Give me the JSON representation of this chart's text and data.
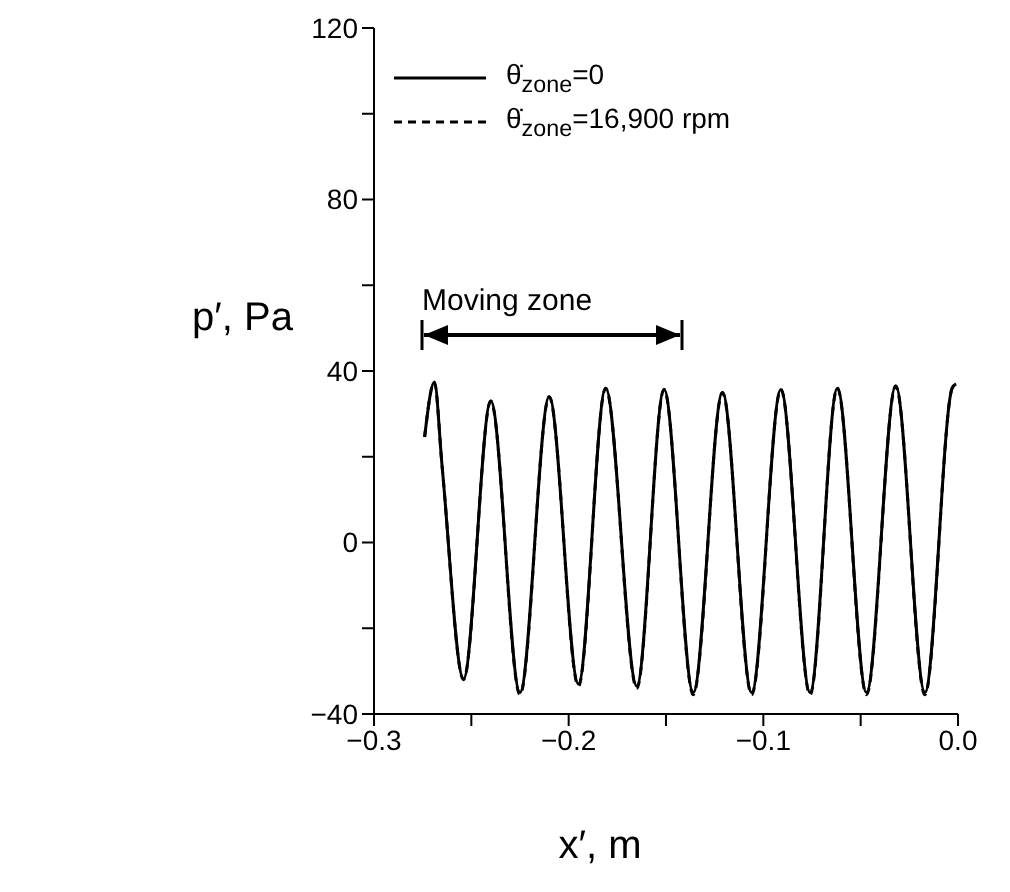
{
  "chart_data": {
    "type": "line",
    "xlabel": "x′, m",
    "ylabel": "p′, Pa",
    "x": [
      -0.274,
      -0.269,
      -0.265,
      -0.254,
      -0.24,
      -0.225,
      -0.21,
      -0.195,
      -0.181,
      -0.165,
      -0.151,
      -0.136,
      -0.121,
      -0.106,
      -0.091,
      -0.076,
      -0.062,
      -0.047,
      -0.032,
      -0.017,
      -0.003,
      -0.001
    ],
    "series": [
      {
        "name": "θ̇$_{zone}$=0",
        "color": "#000000",
        "line_style": "solid",
        "values": [
          24.6,
          37.4,
          17.7,
          -31.8,
          33,
          -35,
          34,
          -33,
          36,
          -33.5,
          35.7,
          -35,
          35,
          -35,
          35.7,
          -35,
          36,
          -35,
          36.5,
          -35,
          36,
          37
        ]
      },
      {
        "name": "θ̇$_{zone}$=16,900 rpm",
        "color": "#000000",
        "line_style": "dashed",
        "values": [
          24.6,
          37.4,
          17.7,
          -32,
          33,
          -35.5,
          34,
          -33.5,
          36,
          -34,
          35.7,
          -35.5,
          35,
          -35.5,
          35.7,
          -35.5,
          36,
          -35.5,
          36.5,
          -35.5,
          36,
          37
        ]
      }
    ],
    "xlim": [
      -0.3,
      0
    ],
    "xticks": [
      -0.3,
      {
        "value": -0.25,
        "label": null
      },
      -0.2,
      {
        "value": -0.15,
        "label": null
      },
      -0.1,
      {
        "value": -0.05,
        "label": null
      },
      {
        "value": 0,
        "label": "0.0"
      }
    ],
    "ylim": [
      -40,
      120
    ],
    "yticks": [
      -40,
      {
        "value": -20,
        "label": null
      },
      0,
      {
        "value": 20,
        "label": null
      },
      40,
      {
        "value": 60,
        "label": null
      },
      80,
      {
        "value": 100,
        "label": null
      },
      120
    ],
    "annotations": [
      "Moving zone"
    ],
    "legend": "top left",
    "grid": false,
    "marker": "none"
  }
}
